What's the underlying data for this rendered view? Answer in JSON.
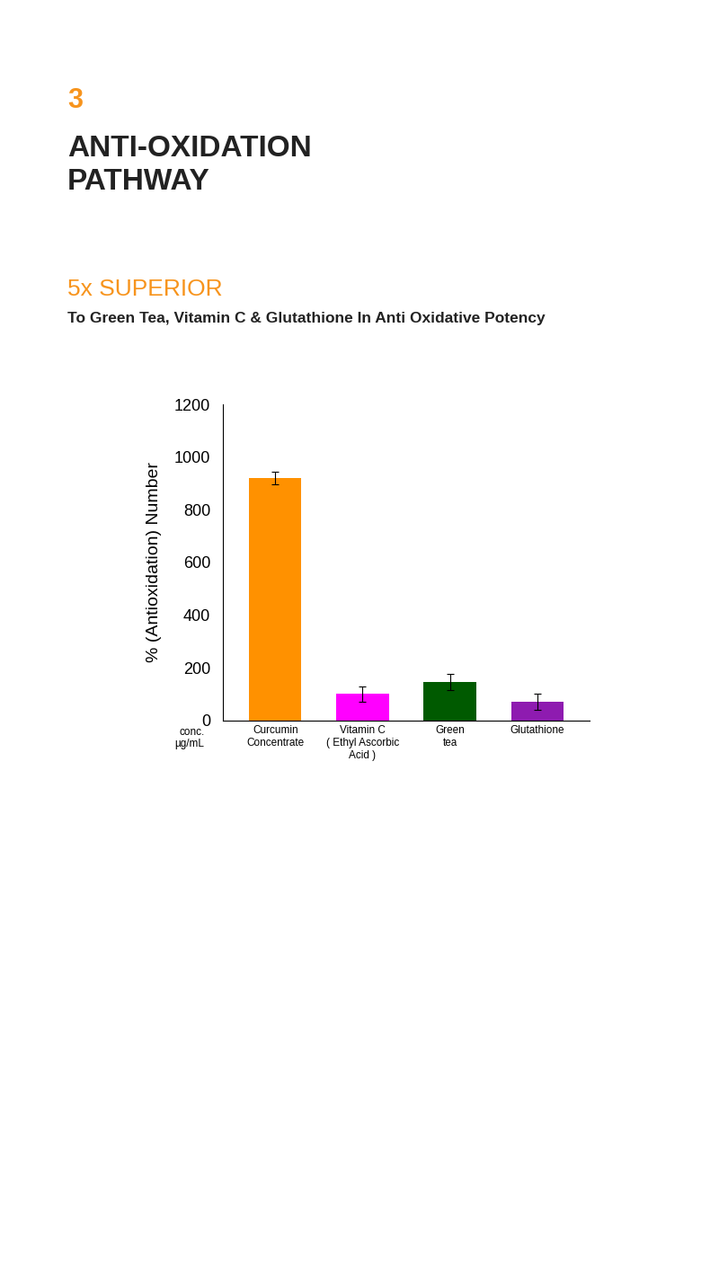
{
  "chart_data": {
    "type": "bar",
    "title": "ANTI-OXIDATION\nPATHWAY",
    "subtitle": "To Green Tea, Vitamin C & Glutathione In Anti Oxidative Potency",
    "annotations": [
      "3",
      "5x SUPERIOR"
    ],
    "ylabel": "% (Antioxidation) Number",
    "xlabel": "conc.\nµg/mL",
    "categories": [
      "Curcumin\nConcentrate",
      "Vitamin C\n( Ethyl Ascorbic\nAcid )",
      "Green\ntea",
      "Glutathione"
    ],
    "values": [
      920,
      100,
      145,
      70
    ],
    "errors": [
      25,
      30,
      30,
      30
    ],
    "colors": [
      "#ff9100",
      "#ff00ff",
      "#005a00",
      "#8e1bb0"
    ],
    "ylim": [
      0,
      1200
    ],
    "yticks": [
      0,
      200,
      400,
      600,
      800,
      1000,
      1200
    ],
    "grid": false
  }
}
